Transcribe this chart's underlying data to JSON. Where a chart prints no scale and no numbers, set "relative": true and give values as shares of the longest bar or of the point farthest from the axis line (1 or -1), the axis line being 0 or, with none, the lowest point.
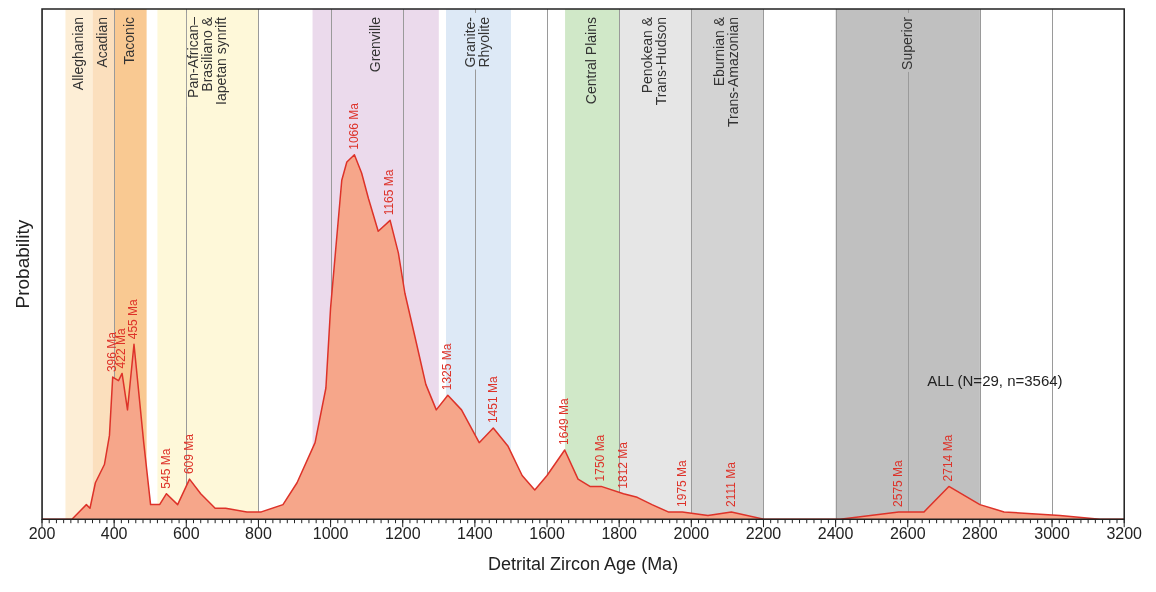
{
  "chart_data": {
    "type": "area",
    "xlabel": "Detrital Zircon Age (Ma)",
    "ylabel": "Probability",
    "relative": true,
    "xlim": [
      200,
      3200
    ],
    "xticks": [
      200,
      400,
      600,
      800,
      1000,
      1200,
      1400,
      1600,
      1800,
      2000,
      2200,
      2400,
      2600,
      2800,
      3000,
      3200
    ],
    "grid": "x",
    "x": [
      200,
      283,
      323,
      333,
      348,
      373,
      387,
      396,
      412,
      422,
      437,
      455,
      482,
      501,
      526,
      545,
      576,
      609,
      640,
      660,
      680,
      709,
      768,
      808,
      868,
      907,
      957,
      987,
      1000,
      1031,
      1045,
      1066,
      1086,
      1105,
      1132,
      1165,
      1188,
      1206,
      1234,
      1264,
      1293,
      1325,
      1363,
      1412,
      1451,
      1492,
      1531,
      1566,
      1600,
      1649,
      1686,
      1719,
      1750,
      1812,
      1850,
      1891,
      1936,
      1975,
      2046,
      2111,
      2202,
      2412,
      2575,
      2645,
      2714,
      2800,
      2867,
      3022,
      3133,
      3200
    ],
    "series": [
      {
        "color": "#f6a68a",
        "values": [
          0,
          0,
          0.04,
          0.03,
          0.1,
          0.15,
          0.23,
          0.39,
          0.38,
          0.4,
          0.3,
          0.48,
          0.21,
          0.04,
          0.04,
          0.07,
          0.04,
          0.11,
          0.07,
          0.05,
          0.03,
          0.03,
          0.02,
          0.02,
          0.04,
          0.1,
          0.21,
          0.36,
          0.58,
          0.93,
          0.98,
          1,
          0.95,
          0.88,
          0.79,
          0.82,
          0.73,
          0.62,
          0.5,
          0.37,
          0.3,
          0.34,
          0.3,
          0.21,
          0.25,
          0.2,
          0.12,
          0.08,
          0.12,
          0.19,
          0.11,
          0.09,
          0.09,
          0.07,
          0.06,
          0.04,
          0.02,
          0.02,
          0.01,
          0.02,
          0,
          0,
          0.02,
          0.02,
          0.09,
          0.04,
          0.02,
          0.01,
          0,
          0
        ]
      }
    ],
    "bands": [
      {
        "axis": "x",
        "from": 265,
        "to": 340,
        "label": "Alleghanian",
        "color": "#fdeed6"
      },
      {
        "axis": "x",
        "from": 340,
        "to": 400,
        "label": "Acadian",
        "color": "#fbdfbd"
      },
      {
        "axis": "x",
        "from": 400,
        "to": 490,
        "label": "Taconic",
        "color": "#f9c992"
      },
      {
        "axis": "x",
        "from": 520,
        "to": 800,
        "label": "Pan-African–\nBrasiliano &\nIapetan synrift",
        "color": "#fef8d9"
      },
      {
        "axis": "x",
        "from": 950,
        "to": 1300,
        "label": "Grenville",
        "color": "#ebdaec"
      },
      {
        "axis": "x",
        "from": 1320,
        "to": 1500,
        "label": "Granite-\nRhyolite",
        "color": "#dde9f6"
      },
      {
        "axis": "x",
        "from": 1650,
        "to": 1800,
        "label": "Central Plains",
        "color": "#d0e8c8"
      },
      {
        "axis": "x",
        "from": 1800,
        "to": 2000,
        "label": "Penokean &\nTrans-Hudson",
        "color": "#e6e6e6"
      },
      {
        "axis": "x",
        "from": 2000,
        "to": 2200,
        "label": "Eburnian &\nTrans-Amazonian",
        "color": "#d3d3d3"
      },
      {
        "axis": "x",
        "from": 2400,
        "to": 2800,
        "label": "Superior",
        "color": "#c0c0c0"
      }
    ],
    "annotations": [
      {
        "text": "396 Ma",
        "x": 396,
        "y": 0.39
      },
      {
        "text": "422 Ma",
        "x": 422,
        "y": 0.4
      },
      {
        "text": "455 Ma",
        "x": 455,
        "y": 0.48
      },
      {
        "text": "545 Ma",
        "x": 545,
        "y": 0.07
      },
      {
        "text": "609 Ma",
        "x": 609,
        "y": 0.11
      },
      {
        "text": "1066 Ma",
        "x": 1066,
        "y": 1
      },
      {
        "text": "1165 Ma",
        "x": 1165,
        "y": 0.82
      },
      {
        "text": "1325 Ma",
        "x": 1325,
        "y": 0.34
      },
      {
        "text": "1451 Ma",
        "x": 1451,
        "y": 0.25
      },
      {
        "text": "1649 Ma",
        "x": 1649,
        "y": 0.19
      },
      {
        "text": "1750 Ma",
        "x": 1750,
        "y": 0.09
      },
      {
        "text": "1812 Ma",
        "x": 1812,
        "y": 0.07
      },
      {
        "text": "1975 Ma",
        "x": 1975,
        "y": 0.02
      },
      {
        "text": "2111 Ma",
        "x": 2111,
        "y": 0.02
      },
      {
        "text": "2575 Ma",
        "x": 2575,
        "y": 0.02
      },
      {
        "text": "2714 Ma",
        "x": 2714,
        "y": 0.09
      },
      "ALL (N=29, n=3564)"
    ]
  }
}
